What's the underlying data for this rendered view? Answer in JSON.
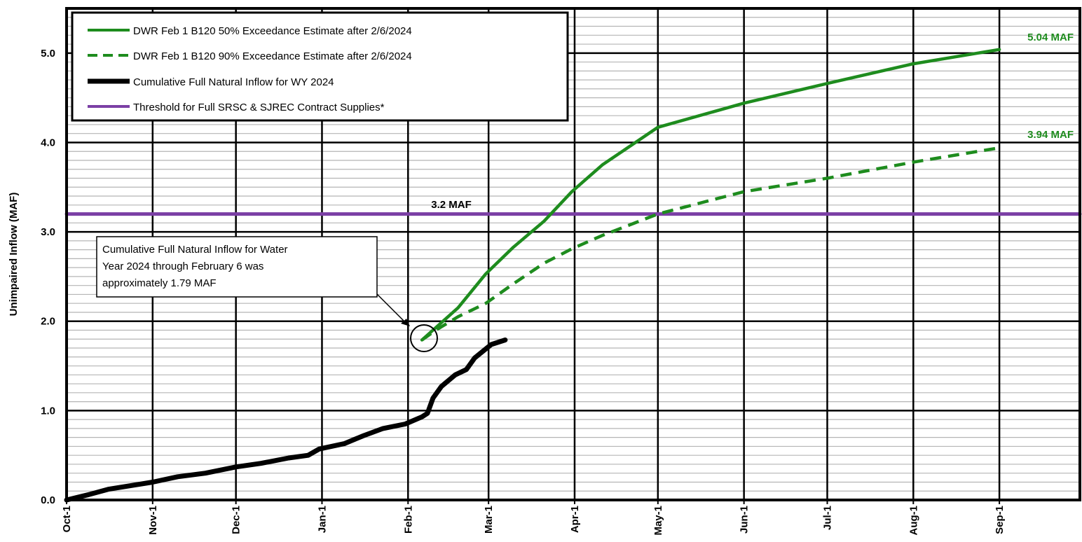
{
  "chart_data": {
    "type": "line",
    "title": "",
    "xlabel": "",
    "ylabel": "Unimpaired Inflow (MAF)",
    "ylim": [
      0,
      5.5
    ],
    "y_ticks": [
      "0.0",
      "1.0",
      "2.0",
      "3.0",
      "4.0",
      "5.0"
    ],
    "x_ticks": [
      "Oct-1",
      "Nov-1",
      "Dec-1",
      "Jan-1",
      "Feb-1",
      "Mar-1",
      "Apr-1",
      "May-1",
      "Jun-1",
      "Jul-1",
      "Aug-1",
      "Sep-1"
    ],
    "grid": true,
    "legend_position": "top-left",
    "series": [
      {
        "name": "DWR Feb 1 B120 50% Exceedance Estimate after  2/6/2024",
        "color": "#1e8c1e",
        "style": "solid",
        "points": [
          [
            128,
            1.79
          ],
          [
            141,
            2.15
          ],
          [
            151,
            2.53
          ],
          [
            161,
            2.83
          ],
          [
            172,
            3.12
          ],
          [
            182,
            3.45
          ],
          [
            193,
            3.75
          ],
          [
            213,
            4.17
          ],
          [
            244,
            4.44
          ],
          [
            274,
            4.66
          ],
          [
            305,
            4.88
          ],
          [
            336,
            5.04
          ]
        ]
      },
      {
        "name": "DWR Feb 1 B120 90% Exceedance Estimate after  2/6/2024",
        "color": "#1e8c1e",
        "style": "dashed",
        "points": [
          [
            128,
            1.79
          ],
          [
            133,
            1.9
          ],
          [
            141,
            2.05
          ],
          [
            151,
            2.2
          ],
          [
            161,
            2.42
          ],
          [
            172,
            2.65
          ],
          [
            182,
            2.81
          ],
          [
            193,
            2.96
          ],
          [
            213,
            3.2
          ],
          [
            244,
            3.45
          ],
          [
            274,
            3.6
          ],
          [
            305,
            3.78
          ],
          [
            336,
            3.94
          ]
        ]
      },
      {
        "name": "Cumulative Full Natural Inflow for WY 2024",
        "color": "#000000",
        "style": "solid",
        "points": [
          [
            0,
            0.0
          ],
          [
            8,
            0.06
          ],
          [
            15,
            0.12
          ],
          [
            25,
            0.17
          ],
          [
            31,
            0.2
          ],
          [
            40,
            0.26
          ],
          [
            50,
            0.3
          ],
          [
            61,
            0.37
          ],
          [
            70,
            0.41
          ],
          [
            80,
            0.47
          ],
          [
            87,
            0.5
          ],
          [
            91,
            0.57
          ],
          [
            100,
            0.63
          ],
          [
            107,
            0.72
          ],
          [
            114,
            0.8
          ],
          [
            122,
            0.85
          ],
          [
            128,
            0.93
          ],
          [
            130,
            0.97
          ],
          [
            132,
            1.14
          ],
          [
            135,
            1.27
          ],
          [
            140,
            1.4
          ],
          [
            144,
            1.46
          ],
          [
            147,
            1.59
          ],
          [
            153,
            1.74
          ],
          [
            158,
            1.79
          ]
        ]
      },
      {
        "name": "Threshold for Full SRSC & SJREC Contract Supplies*",
        "color": "#7b3fa5",
        "style": "solid",
        "points": [
          [
            0,
            3.2
          ],
          [
            365,
            3.2
          ]
        ]
      }
    ],
    "annotations": {
      "label_50": "5.04 MAF",
      "label_90": "3.94 MAF",
      "threshold": "3.2 MAF",
      "callout_line1": "Cumulative Full Natural Inflow for Water",
      "callout_line2": "Year 2024 through February 6 was",
      "callout_line3": "approximately 1.79 MAF"
    }
  }
}
